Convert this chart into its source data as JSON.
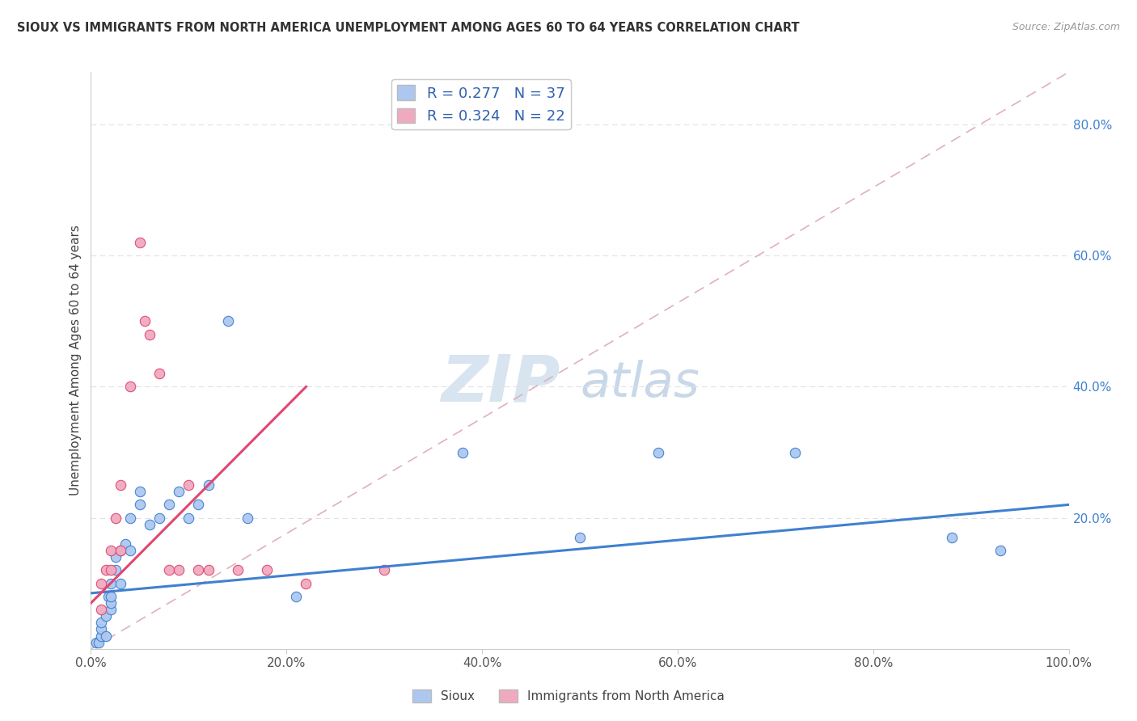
{
  "title": "SIOUX VS IMMIGRANTS FROM NORTH AMERICA UNEMPLOYMENT AMONG AGES 60 TO 64 YEARS CORRELATION CHART",
  "source": "Source: ZipAtlas.com",
  "ylabel": "Unemployment Among Ages 60 to 64 years",
  "xlim": [
    0,
    1.0
  ],
  "ylim": [
    0,
    0.88
  ],
  "xticks": [
    0.0,
    0.2,
    0.4,
    0.6,
    0.8,
    1.0
  ],
  "xtick_labels": [
    "0.0%",
    "20.0%",
    "40.0%",
    "60.0%",
    "80.0%",
    "100.0%"
  ],
  "right_yticks": [
    0.2,
    0.4,
    0.6,
    0.8
  ],
  "right_ytick_labels": [
    "20.0%",
    "40.0%",
    "60.0%",
    "80.0%"
  ],
  "sioux_R": 0.277,
  "sioux_N": 37,
  "immigrants_R": 0.324,
  "immigrants_N": 22,
  "sioux_color": "#adc8f0",
  "immigrants_color": "#f0aac0",
  "sioux_line_color": "#4080d0",
  "immigrants_line_color": "#e04870",
  "ref_line_color": "#e0b0c0",
  "watermark_zip_color": "#d8e4f0",
  "watermark_atlas_color": "#c8d8e8",
  "legend_label_sioux": "Sioux",
  "legend_label_immigrants": "Immigrants from North America",
  "sioux_x": [
    0.005,
    0.008,
    0.01,
    0.01,
    0.01,
    0.015,
    0.015,
    0.018,
    0.02,
    0.02,
    0.02,
    0.02,
    0.025,
    0.025,
    0.03,
    0.03,
    0.035,
    0.04,
    0.04,
    0.05,
    0.05,
    0.06,
    0.07,
    0.08,
    0.09,
    0.1,
    0.11,
    0.12,
    0.14,
    0.16,
    0.21,
    0.38,
    0.5,
    0.58,
    0.72,
    0.88,
    0.93
  ],
  "sioux_y": [
    0.01,
    0.01,
    0.02,
    0.03,
    0.04,
    0.02,
    0.05,
    0.08,
    0.06,
    0.07,
    0.08,
    0.1,
    0.12,
    0.14,
    0.1,
    0.15,
    0.16,
    0.15,
    0.2,
    0.22,
    0.24,
    0.19,
    0.2,
    0.22,
    0.24,
    0.2,
    0.22,
    0.25,
    0.5,
    0.2,
    0.08,
    0.3,
    0.17,
    0.3,
    0.3,
    0.17,
    0.15
  ],
  "immigrants_x": [
    0.01,
    0.01,
    0.015,
    0.02,
    0.02,
    0.025,
    0.03,
    0.03,
    0.04,
    0.05,
    0.055,
    0.06,
    0.07,
    0.08,
    0.09,
    0.1,
    0.11,
    0.12,
    0.15,
    0.18,
    0.22,
    0.3
  ],
  "immigrants_y": [
    0.06,
    0.1,
    0.12,
    0.12,
    0.15,
    0.2,
    0.15,
    0.25,
    0.4,
    0.62,
    0.5,
    0.48,
    0.42,
    0.12,
    0.12,
    0.25,
    0.12,
    0.12,
    0.12,
    0.12,
    0.1,
    0.12
  ],
  "sioux_regline_x": [
    0.0,
    1.0
  ],
  "sioux_regline_y": [
    0.085,
    0.22
  ],
  "immigrants_regline_x": [
    0.0,
    0.22
  ],
  "immigrants_regline_y": [
    0.07,
    0.4
  ]
}
